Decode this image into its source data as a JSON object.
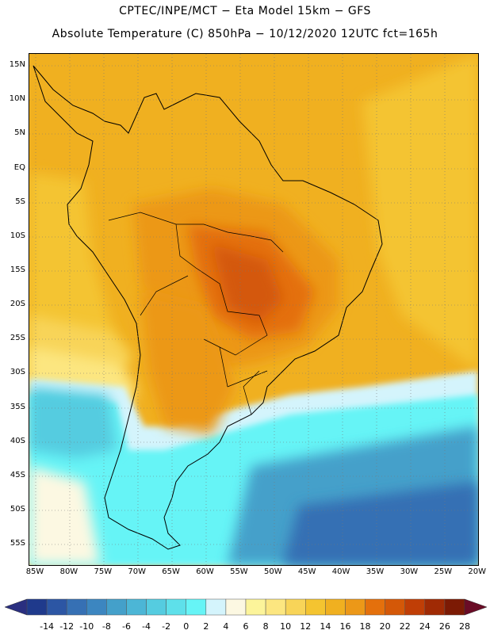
{
  "title": {
    "line1": "CPTEC/INPE/MCT  −   Eta Model 15km  −  GFS",
    "line2": "Absolute Temperature (C) 850hPa  −  10/12/2020 12UTC fct=165h"
  },
  "map": {
    "lat_ticks": [
      "15N",
      "10N",
      "5N",
      "EQ",
      "5S",
      "10S",
      "15S",
      "20S",
      "25S",
      "30S",
      "35S",
      "40S",
      "45S",
      "50S",
      "55S"
    ],
    "lon_ticks": [
      "85W",
      "80W",
      "75W",
      "70W",
      "65W",
      "60W",
      "55W",
      "50W",
      "45W",
      "40W",
      "35W",
      "30W",
      "25W",
      "20W"
    ]
  },
  "colorbar": {
    "labels": [
      "-14",
      "-12",
      "-10",
      "-8",
      "-6",
      "-4",
      "-2",
      "0",
      "2",
      "4",
      "6",
      "8",
      "10",
      "12",
      "14",
      "16",
      "18",
      "20",
      "22",
      "24",
      "26",
      "28"
    ],
    "colors": [
      "#1f3a8c",
      "#2c56a4",
      "#3670b4",
      "#3c86c0",
      "#44a0ca",
      "#4cb6d6",
      "#55cce0",
      "#5ee0ea",
      "#66f4f6",
      "#d4f4fc",
      "#fcf8e2",
      "#fcf49a",
      "#fce680",
      "#f8d458",
      "#f4c430",
      "#f0b020",
      "#ec9818",
      "#e4700c",
      "#d45808",
      "#c03e06",
      "#a02a04",
      "#7c1a04"
    ],
    "low_arrow_color": "#2a2f80",
    "high_arrow_color": "#6a0c26"
  }
}
